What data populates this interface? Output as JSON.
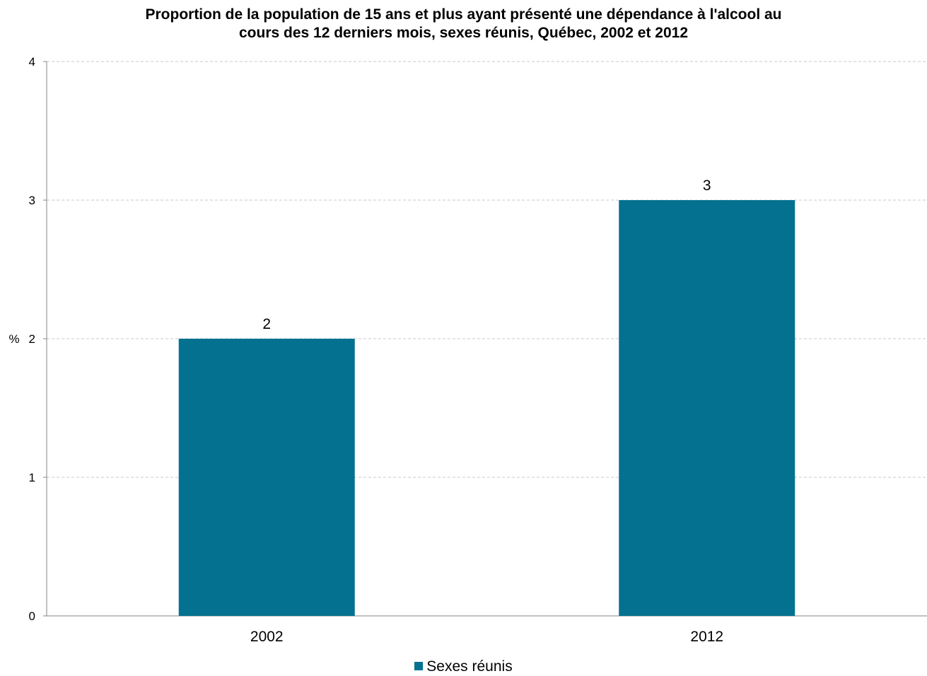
{
  "chart_data": {
    "type": "bar",
    "title_lines": [
      "Proportion de la population de 15 ans et plus ayant présenté une dépendance à l'alcool au",
      "cours des 12 derniers mois, sexes réunis, Québec, 2002 et 2012"
    ],
    "ylabel": "%",
    "xlabel": "",
    "categories": [
      "2002",
      "2012"
    ],
    "series": [
      {
        "name": "Sexes réunis",
        "values": [
          2,
          3
        ],
        "color": "#057190"
      }
    ],
    "data_labels": [
      "2",
      "3"
    ],
    "ylim": [
      0,
      4
    ],
    "yticks": [
      "0",
      "1",
      "2",
      "3",
      "4"
    ],
    "grid": true,
    "legend_position": "bottom"
  }
}
